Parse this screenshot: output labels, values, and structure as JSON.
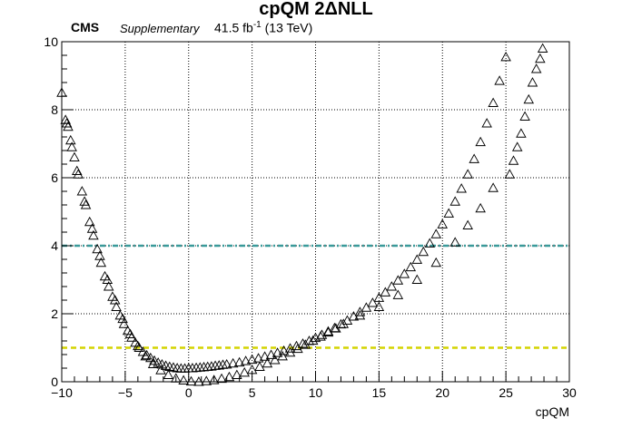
{
  "header": {
    "title": "cpQM 2ΔNLL",
    "experiment": "CMS",
    "tag": "Supplementary",
    "lumi_value": "41.5 fb",
    "lumi_exp": "-1",
    "energy": "(13 TeV)"
  },
  "chart_data": {
    "type": "scatter",
    "title": "cpQM 2ΔNLL",
    "xlabel": "cpQM",
    "ylabel": "",
    "xlim": [
      -10,
      30
    ],
    "ylim": [
      0,
      10
    ],
    "xticks": [
      -10,
      -5,
      0,
      5,
      10,
      15,
      20,
      25,
      30
    ],
    "xtick_labels": [
      "−10",
      "−5",
      "0",
      "5",
      "10",
      "15",
      "20",
      "25",
      "30"
    ],
    "yticks": [
      0,
      2,
      4,
      6,
      8,
      10
    ],
    "ytick_labels": [
      "0",
      "2",
      "4",
      "6",
      "8",
      "10"
    ],
    "grid": true,
    "marker": "open-triangle",
    "colors": {
      "points": "#000000",
      "line_4": "#3a9a9a",
      "line_1": "#d4d400"
    },
    "hlines": [
      {
        "y": 4,
        "color": "#3a9a9a",
        "style": "dash-dot"
      },
      {
        "y": 1,
        "color": "#d4d400",
        "style": "dashed"
      }
    ],
    "series": [
      {
        "x": [
          -10.0,
          -9.7,
          -9.5,
          -9.3,
          -9.0,
          -8.7,
          -8.4,
          -8.1,
          -7.8,
          -7.5,
          -7.2,
          -6.9,
          -6.6,
          -6.3,
          -6.0,
          -5.7,
          -5.4,
          -5.1,
          -4.8,
          -4.5,
          -4.2,
          -3.9,
          -3.6,
          -3.3,
          -3.0,
          -2.7,
          -2.4,
          -2.1,
          -1.8,
          -1.5,
          -1.2,
          -0.9,
          -0.6,
          -0.3,
          0.0,
          0.3,
          0.6,
          0.9,
          1.2,
          1.5,
          1.8,
          2.1,
          2.4,
          2.7,
          3.0,
          3.5,
          4.0,
          4.5,
          5.0,
          5.5,
          6.0,
          6.5,
          7.0,
          7.5,
          8.0,
          8.5,
          9.0,
          9.5,
          10.0,
          10.5,
          11.0,
          11.5,
          12.0,
          12.5,
          13.0,
          13.5,
          14.0,
          14.5,
          15.0,
          15.5,
          16.0,
          16.5,
          17.0,
          17.5,
          18.0,
          18.5,
          19.0,
          19.5,
          20.0,
          20.5,
          21.0,
          21.5,
          22.0,
          22.5,
          23.0,
          23.5,
          24.0,
          24.5,
          25.0,
          25.3,
          25.6,
          25.9,
          26.2,
          26.5,
          26.8,
          27.1,
          27.4,
          27.7,
          27.9
        ],
        "y": [
          8.5,
          7.7,
          7.5,
          7.1,
          6.6,
          6.1,
          5.6,
          5.2,
          4.7,
          4.3,
          3.9,
          3.5,
          3.1,
          2.8,
          2.5,
          2.2,
          1.95,
          1.7,
          1.5,
          1.3,
          1.15,
          1.0,
          0.88,
          0.78,
          0.7,
          0.62,
          0.56,
          0.51,
          0.47,
          0.44,
          0.42,
          0.4,
          0.39,
          0.39,
          0.4,
          0.4,
          0.41,
          0.42,
          0.43,
          0.44,
          0.45,
          0.47,
          0.48,
          0.5,
          0.51,
          0.54,
          0.57,
          0.61,
          0.65,
          0.69,
          0.74,
          0.79,
          0.85,
          0.91,
          0.98,
          1.05,
          1.12,
          1.2,
          1.29,
          1.38,
          1.48,
          1.58,
          1.69,
          1.8,
          1.92,
          2.05,
          2.18,
          2.32,
          2.47,
          2.63,
          2.8,
          2.98,
          3.17,
          3.37,
          3.59,
          3.82,
          4.07,
          4.34,
          4.63,
          4.95,
          5.3,
          5.68,
          6.1,
          6.55,
          7.05,
          7.6,
          8.2,
          8.85,
          9.55,
          6.1,
          6.5,
          6.9,
          7.3,
          7.8,
          8.3,
          8.8,
          9.2,
          9.5,
          9.8
        ]
      },
      {
        "x": [
          -9.6,
          -9.2,
          -8.8,
          -8.2,
          -7.6,
          -7.0,
          -6.4,
          -5.8,
          -5.2,
          -4.6,
          -4.0,
          -3.4,
          -2.8,
          -2.2,
          -1.6,
          -1.0,
          -0.4,
          0.2,
          0.8,
          1.4,
          2.0,
          2.6,
          3.2,
          3.8,
          4.4,
          5.0,
          5.6,
          6.2,
          6.8,
          7.4,
          8.0,
          8.6,
          9.2,
          9.8,
          10.4,
          11.0,
          11.6,
          12.2,
          13.5,
          15.0,
          16.5,
          18.0,
          19.5,
          21.0,
          22.0,
          23.0,
          24.0
        ],
        "y": [
          7.6,
          6.9,
          6.2,
          5.3,
          4.5,
          3.7,
          3.0,
          2.4,
          1.85,
          1.4,
          1.05,
          0.75,
          0.52,
          0.34,
          0.2,
          0.1,
          0.04,
          0.01,
          0.0,
          0.02,
          0.05,
          0.09,
          0.14,
          0.2,
          0.27,
          0.35,
          0.44,
          0.54,
          0.64,
          0.75,
          0.86,
          0.97,
          1.09,
          1.21,
          1.33,
          1.45,
          1.57,
          1.7,
          1.95,
          2.2,
          2.55,
          3.0,
          3.5,
          4.1,
          4.6,
          5.1,
          5.7
        ]
      }
    ]
  }
}
